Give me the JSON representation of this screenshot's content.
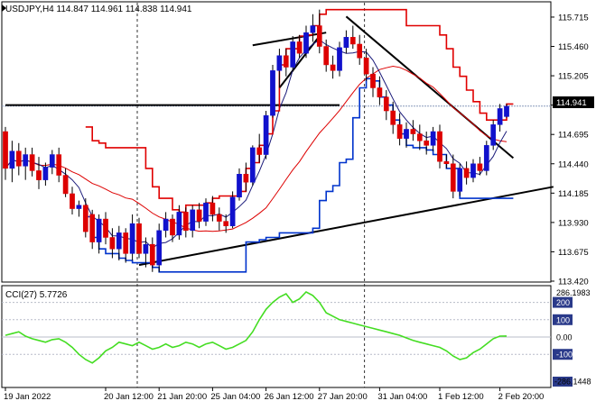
{
  "chart_data": [
    {
      "type": "candlestick",
      "symbol": "USDJPY,H4",
      "header_values": [
        "114.847",
        "114.961",
        "114.838",
        "114.941"
      ],
      "current_price_label": "114.941",
      "y_ticks": [
        "115.715",
        "115.460",
        "115.205",
        "114.950",
        "114.695",
        "114.440",
        "114.185",
        "113.930",
        "113.675",
        "113.420"
      ],
      "ylim": [
        113.42,
        115.84
      ],
      "x_ticks": [
        {
          "label": "19 Jan 2022",
          "i": 0
        },
        {
          "label": "20 Jan 12:00",
          "i": 15
        },
        {
          "label": "21 Jan 20:00",
          "i": 23
        },
        {
          "label": "25 Jan 04:00",
          "i": 31
        },
        {
          "label": "26 Jan 12:00",
          "i": 39
        },
        {
          "label": "27 Jan 20:00",
          "i": 47
        },
        {
          "label": "31 Jan 04:00",
          "i": 56
        },
        {
          "label": "1 Feb 12:00",
          "i": 65
        },
        {
          "label": "2 Feb 20:00",
          "i": 74
        }
      ],
      "period_separators": [
        20,
        54
      ],
      "candles": [
        [
          114.72,
          114.76,
          114.3,
          114.4
        ],
        [
          114.4,
          114.64,
          114.28,
          114.55
        ],
        [
          114.55,
          114.62,
          114.34,
          114.42
        ],
        [
          114.42,
          114.58,
          114.3,
          114.52
        ],
        [
          114.52,
          114.58,
          114.33,
          114.38
        ],
        [
          114.38,
          114.5,
          114.22,
          114.3
        ],
        [
          114.3,
          114.45,
          114.25,
          114.41
        ],
        [
          114.41,
          114.56,
          114.35,
          114.52
        ],
        [
          114.52,
          114.58,
          114.28,
          114.34
        ],
        [
          114.34,
          114.4,
          114.15,
          114.18
        ],
        [
          114.18,
          114.24,
          114.0,
          114.05
        ],
        [
          114.05,
          114.12,
          113.98,
          114.08
        ],
        [
          114.08,
          114.14,
          113.8,
          113.85
        ],
        [
          114.0,
          114.04,
          113.7,
          113.76
        ],
        [
          113.76,
          114.0,
          113.66,
          113.96
        ],
        [
          113.96,
          114.02,
          113.74,
          113.8
        ],
        [
          113.8,
          113.88,
          113.62,
          113.7
        ],
        [
          113.7,
          113.9,
          113.6,
          113.84
        ],
        [
          113.84,
          113.88,
          113.58,
          113.66
        ],
        [
          113.66,
          114.0,
          113.6,
          113.92
        ],
        [
          113.92,
          113.97,
          113.62,
          113.66
        ],
        [
          113.66,
          113.8,
          113.54,
          113.74
        ],
        [
          113.74,
          113.8,
          113.5,
          113.56
        ],
        [
          113.56,
          113.92,
          113.5,
          113.86
        ],
        [
          113.86,
          114.02,
          113.8,
          113.96
        ],
        [
          113.96,
          114.0,
          113.76,
          113.82
        ],
        [
          113.82,
          114.08,
          113.78,
          114.02
        ],
        [
          114.02,
          114.06,
          113.8,
          113.86
        ],
        [
          113.86,
          114.08,
          113.8,
          114.04
        ],
        [
          114.04,
          114.1,
          113.88,
          113.94
        ],
        [
          113.94,
          114.14,
          113.9,
          114.1
        ],
        [
          114.1,
          114.16,
          113.94,
          114.0
        ],
        [
          114.0,
          114.06,
          113.86,
          113.94
        ],
        [
          113.94,
          114.0,
          113.84,
          113.9
        ],
        [
          113.9,
          114.2,
          113.88,
          114.15
        ],
        [
          114.15,
          114.4,
          114.12,
          114.35
        ],
        [
          114.35,
          114.45,
          114.2,
          114.28
        ],
        [
          114.28,
          114.6,
          114.25,
          114.58
        ],
        [
          114.58,
          114.7,
          114.45,
          114.52
        ],
        [
          114.52,
          114.9,
          114.48,
          114.86
        ],
        [
          114.86,
          115.3,
          114.84,
          115.25
        ],
        [
          115.25,
          115.44,
          115.1,
          115.38
        ],
        [
          115.38,
          115.44,
          115.2,
          115.28
        ],
        [
          115.28,
          115.55,
          115.24,
          115.5
        ],
        [
          115.5,
          115.56,
          115.36,
          115.4
        ],
        [
          115.4,
          115.64,
          115.36,
          115.58
        ],
        [
          115.58,
          115.74,
          115.5,
          115.64
        ],
        [
          115.64,
          115.78,
          115.4,
          115.46
        ],
        [
          115.46,
          115.52,
          115.24,
          115.3
        ],
        [
          115.3,
          115.38,
          115.18,
          115.25
        ],
        [
          115.25,
          115.5,
          115.2,
          115.45
        ],
        [
          115.45,
          115.6,
          115.4,
          115.54
        ],
        [
          115.54,
          115.64,
          115.44,
          115.48
        ],
        [
          115.48,
          115.56,
          115.3,
          115.36
        ],
        [
          115.36,
          115.44,
          115.16,
          115.22
        ],
        [
          115.22,
          115.28,
          115.02,
          115.1
        ],
        [
          115.1,
          115.2,
          114.95,
          115.02
        ],
        [
          115.02,
          115.08,
          114.82,
          114.9
        ],
        [
          114.9,
          114.98,
          114.7,
          114.78
        ],
        [
          114.78,
          114.88,
          114.6,
          114.66
        ],
        [
          114.66,
          114.8,
          114.58,
          114.74
        ],
        [
          114.74,
          114.82,
          114.64,
          114.7
        ],
        [
          114.7,
          114.78,
          114.56,
          114.64
        ],
        [
          114.64,
          114.72,
          114.52,
          114.6
        ],
        [
          114.6,
          114.76,
          114.55,
          114.72
        ],
        [
          114.72,
          114.78,
          114.4,
          114.46
        ],
        [
          114.46,
          114.52,
          114.4,
          114.44
        ],
        [
          114.44,
          114.52,
          114.14,
          114.2
        ],
        [
          114.2,
          114.44,
          114.16,
          114.4
        ],
        [
          114.4,
          114.46,
          114.26,
          114.32
        ],
        [
          114.32,
          114.48,
          114.28,
          114.44
        ],
        [
          114.44,
          114.5,
          114.34,
          114.38
        ],
        [
          114.38,
          114.64,
          114.34,
          114.6
        ],
        [
          114.6,
          114.82,
          114.56,
          114.78
        ],
        [
          114.78,
          114.96,
          114.72,
          114.92
        ],
        [
          114.85,
          114.96,
          114.84,
          114.94
        ]
      ],
      "cci_indicator": {
        "label": "CCI(27) 5.7726",
        "levels": [
          "200",
          "100",
          "0.00",
          "-100"
        ],
        "range_labels": [
          "286.1983",
          "-286.1448"
        ],
        "ylim": [
          -286.1448,
          286.1983
        ],
        "values": [
          10,
          20,
          30,
          5,
          -10,
          -20,
          -30,
          -15,
          -10,
          -30,
          -60,
          -100,
          -130,
          -150,
          -120,
          -80,
          -60,
          -30,
          -40,
          -50,
          -30,
          -50,
          -70,
          -60,
          -40,
          -60,
          -50,
          -30,
          -40,
          -60,
          -40,
          -30,
          -50,
          -70,
          -60,
          -40,
          -20,
          30,
          100,
          160,
          200,
          230,
          250,
          200,
          220,
          260,
          240,
          200,
          140,
          120,
          100,
          90,
          80,
          70,
          60,
          50,
          40,
          30,
          20,
          10,
          -5,
          -20,
          -30,
          -40,
          -50,
          -60,
          -80,
          -110,
          -130,
          -120,
          -90,
          -70,
          -40,
          -10,
          5,
          6
        ]
      },
      "indicators": [
        "blue moving average",
        "red moving average",
        "red high step line",
        "blue low step line",
        "trend lines"
      ]
    }
  ]
}
